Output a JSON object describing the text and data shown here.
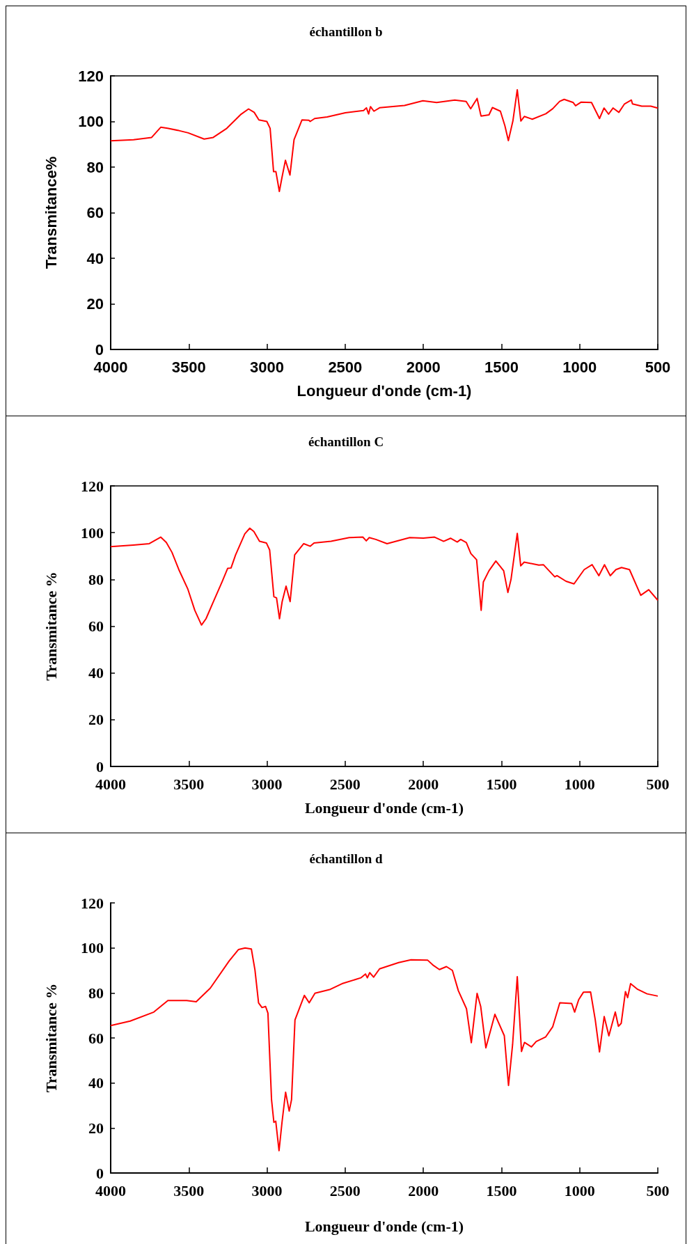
{
  "chart_data": [
    {
      "type": "line",
      "title": "échantillon b",
      "xlabel": "Longueur d'onde (cm-1)",
      "ylabel": "Transmitance%",
      "xlim": [
        4000,
        500
      ],
      "ylim": [
        0,
        120
      ],
      "xticks": [
        4000,
        3500,
        3000,
        2500,
        2000,
        1500,
        1000,
        500
      ],
      "yticks": [
        0,
        20,
        40,
        60,
        80,
        100,
        120
      ],
      "grid": false,
      "marker": "none",
      "line_style": "solid",
      "series": [
        {
          "color": "#ff0000",
          "x": [
            4000,
            3854,
            3738,
            3679,
            3636,
            3563,
            3504,
            3402,
            3344,
            3257,
            3169,
            3118,
            3082,
            3052,
            3001,
            2980,
            2958,
            2943,
            2921,
            2904,
            2882,
            2853,
            2827,
            2776,
            2732,
            2724,
            2695,
            2615,
            2499,
            2382,
            2364,
            2350,
            2338,
            2316,
            2280,
            2120,
            2003,
            1915,
            1799,
            1726,
            1697,
            1656,
            1631,
            1580,
            1558,
            1507,
            1478,
            1456,
            1427,
            1399,
            1376,
            1354,
            1303,
            1216,
            1172,
            1128,
            1099,
            1041,
            1026,
            990,
            924,
            873,
            844,
            815,
            786,
            749,
            713,
            669,
            662,
            603,
            545,
            500
          ],
          "values": [
            91.5,
            92,
            93,
            97.5,
            97,
            96,
            95,
            92.3,
            93,
            97,
            103,
            105.5,
            104,
            100.7,
            100,
            97,
            78,
            78,
            69.3,
            75.5,
            83,
            76.5,
            92,
            100.7,
            100.5,
            100,
            101.3,
            102,
            103.8,
            104.8,
            106,
            103.3,
            106.5,
            104.5,
            106,
            107,
            109.1,
            108.3,
            109.4,
            108.8,
            105.6,
            110.1,
            102.4,
            102.9,
            106.1,
            104.5,
            98.1,
            91.6,
            100.2,
            113.9,
            100.2,
            102.2,
            101,
            103.4,
            105.6,
            108.8,
            109.7,
            108.3,
            106.9,
            108.5,
            108.3,
            101.3,
            105.9,
            103.2,
            105.9,
            104,
            107.7,
            109.4,
            107.7,
            106.7,
            106.7,
            105.9
          ]
        }
      ]
    },
    {
      "type": "line",
      "title": "échantillon C",
      "xlabel": "Longueur d'onde (cm-1)",
      "ylabel": "Transmitance %",
      "xlim": [
        4000,
        500
      ],
      "ylim": [
        0,
        120
      ],
      "xticks": [
        4000,
        3500,
        3000,
        2500,
        2000,
        1500,
        1000,
        500
      ],
      "yticks": [
        0,
        20,
        40,
        60,
        80,
        100,
        120
      ],
      "grid": false,
      "marker": "none",
      "line_style": "solid",
      "series": [
        {
          "color": "#ff0000",
          "x": [
            4000,
            3855,
            3753,
            3680,
            3644,
            3608,
            3564,
            3506,
            3462,
            3419,
            3390,
            3346,
            3288,
            3252,
            3230,
            3201,
            3142,
            3110,
            3084,
            3048,
            3004,
            2983,
            2956,
            2939,
            2920,
            2903,
            2878,
            2852,
            2823,
            2765,
            2724,
            2699,
            2590,
            2474,
            2387,
            2365,
            2346,
            2304,
            2232,
            2087,
            2000,
            1928,
            1870,
            1826,
            1783,
            1761,
            1725,
            1696,
            1659,
            1630,
            1616,
            1580,
            1536,
            1486,
            1459,
            1439,
            1399,
            1377,
            1355,
            1261,
            1232,
            1159,
            1145,
            1087,
            1036,
            971,
            920,
            877,
            841,
            804,
            768,
            732,
            681,
            609,
            558,
            500
          ],
          "values": [
            94,
            94.7,
            95.3,
            98.1,
            95.8,
            91.6,
            84.2,
            75.8,
            66.8,
            60.5,
            63.2,
            70,
            78.9,
            84.7,
            84.9,
            90.5,
            99.5,
            101.9,
            100.5,
            96.3,
            95.6,
            92.6,
            72.6,
            72.1,
            63.2,
            70.5,
            77.1,
            70.5,
            90.5,
            95.3,
            94.2,
            95.6,
            96.3,
            97.9,
            98.1,
            96.5,
            97.9,
            97.1,
            95.3,
            97.9,
            97.7,
            98.1,
            96.3,
            97.6,
            96,
            97.1,
            95.8,
            91.1,
            88.4,
            66.8,
            78.9,
            83.7,
            87.9,
            83.7,
            74.4,
            80,
            99.7,
            85.8,
            87.4,
            86.1,
            86.3,
            81.1,
            81.6,
            79.2,
            78.1,
            84.2,
            86.3,
            81.6,
            86.3,
            81.6,
            84.2,
            85.1,
            84.2,
            73.2,
            75.6,
            71.1
          ]
        }
      ]
    },
    {
      "type": "line",
      "title": "échantillon d",
      "xlabel": "Longueur d'onde (cm-1)",
      "ylabel": "Transmitance %",
      "xlim": [
        4000,
        500
      ],
      "ylim": [
        0,
        120
      ],
      "xticks": [
        4000,
        3500,
        3000,
        2500,
        2000,
        1500,
        1000,
        500
      ],
      "yticks": [
        0,
        20,
        40,
        60,
        80,
        100,
        120
      ],
      "grid": false,
      "marker": "none",
      "line_style": "solid",
      "series": [
        {
          "color": "#ff0000",
          "x": [
            4000,
            3875,
            3724,
            3634,
            3514,
            3453,
            3363,
            3242,
            3182,
            3140,
            3100,
            3077,
            3054,
            3032,
            3009,
            2994,
            2971,
            2956,
            2944,
            2923,
            2904,
            2881,
            2858,
            2843,
            2821,
            2761,
            2730,
            2693,
            2595,
            2520,
            2400,
            2370,
            2358,
            2343,
            2318,
            2280,
            2158,
            2079,
            1973,
            1935,
            1897,
            1852,
            1814,
            1776,
            1724,
            1693,
            1656,
            1633,
            1600,
            1542,
            1482,
            1455,
            1429,
            1399,
            1372,
            1353,
            1308,
            1278,
            1218,
            1172,
            1127,
            1051,
            1032,
            1006,
            976,
            930,
            900,
            873,
            843,
            813,
            772,
            752,
            734,
            707,
            693,
            674,
            629,
            569,
            500
          ],
          "values": [
            65.5,
            67.5,
            71.5,
            76.6,
            76.6,
            76.1,
            82.1,
            94.2,
            99.3,
            100,
            99.5,
            90.2,
            75.6,
            73.5,
            74,
            71,
            32.6,
            22.5,
            23,
            9.9,
            22.5,
            35.9,
            27.5,
            32.6,
            68,
            78.9,
            75.6,
            79.9,
            81.6,
            84.1,
            86.7,
            88.4,
            86.7,
            89,
            87,
            90.7,
            93.5,
            94.7,
            94.6,
            92.2,
            90.4,
            91.7,
            90,
            81,
            73,
            57.9,
            79.8,
            74,
            55.6,
            70.5,
            61,
            38.9,
            57,
            87.2,
            54,
            58,
            56,
            58.4,
            60.4,
            65,
            75.6,
            75.3,
            71.5,
            77,
            80.3,
            80.4,
            68,
            53.8,
            69.5,
            60.9,
            71.5,
            65.2,
            66.5,
            80.6,
            77.9,
            84.1,
            81.6,
            79.6,
            78.6
          ]
        }
      ]
    }
  ]
}
